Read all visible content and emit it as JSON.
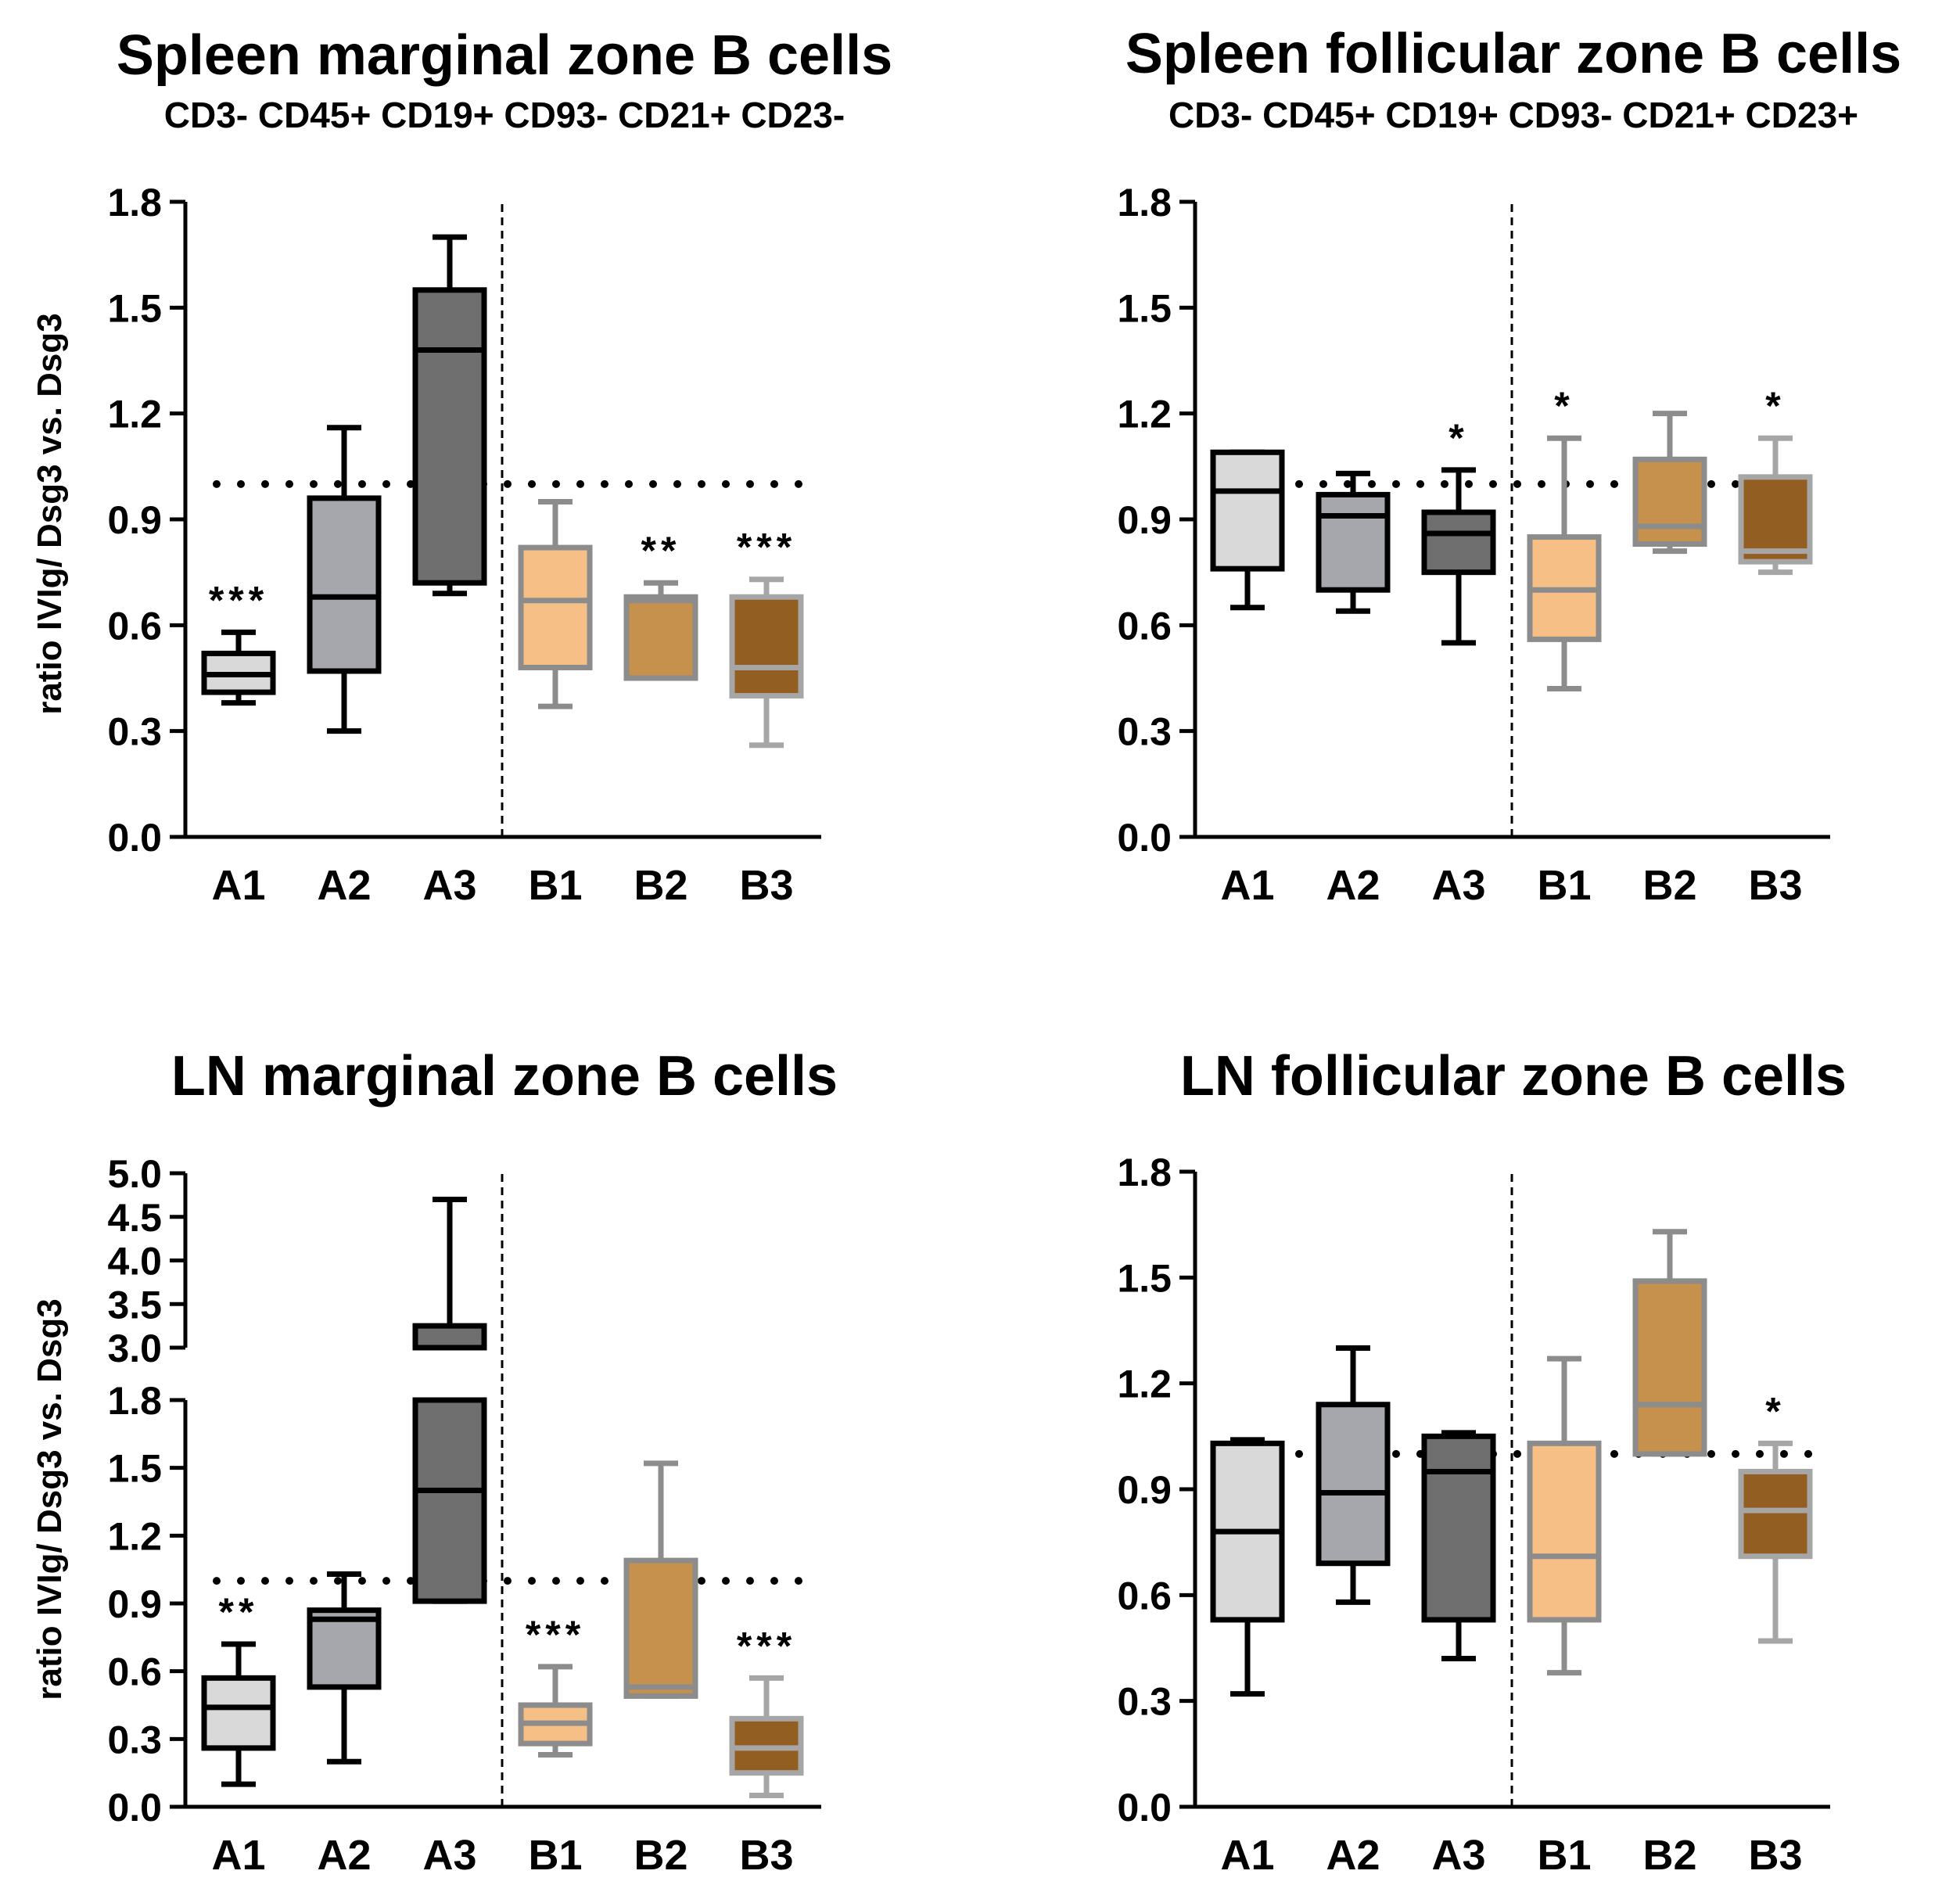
{
  "chart_data": [
    {
      "type": "box",
      "title": "Spleen marginal zone B cells",
      "subtitle": "CD3- CD45+ CD19+ CD93- CD21+ CD23-",
      "xlabel": "",
      "ylabel": "ratio IVIg/ Dsg3 vs. Dsg3",
      "ylim": [
        0,
        1.8
      ],
      "yticks": [
        "0.0",
        "0.3",
        "0.6",
        "0.9",
        "1.2",
        "1.5",
        "1.8"
      ],
      "reference_line": 1.0,
      "categories": [
        "A1",
        "A2",
        "A3",
        "B1",
        "B2",
        "B3"
      ],
      "boxes": [
        {
          "min": 0.38,
          "q1": 0.41,
          "median": 0.46,
          "q3": 0.52,
          "max": 0.58,
          "sig": "***"
        },
        {
          "min": 0.3,
          "q1": 0.47,
          "median": 0.68,
          "q3": 0.96,
          "max": 1.16,
          "sig": ""
        },
        {
          "min": 0.69,
          "q1": 0.72,
          "median": 1.38,
          "q3": 1.55,
          "max": 1.7,
          "sig": ""
        },
        {
          "min": 0.37,
          "q1": 0.48,
          "median": 0.67,
          "q3": 0.82,
          "max": 0.95,
          "sig": ""
        },
        {
          "min": 0.45,
          "q1": 0.45,
          "median": 0.67,
          "q3": 0.68,
          "max": 0.72,
          "sig": "**"
        },
        {
          "min": 0.26,
          "q1": 0.4,
          "median": 0.48,
          "q3": 0.68,
          "max": 0.73,
          "sig": "***"
        }
      ]
    },
    {
      "type": "box",
      "title": "Spleen follicular zone B cells",
      "subtitle": "CD3- CD45+ CD19+ CD93- CD21+ CD23+",
      "xlabel": "",
      "ylabel": "",
      "ylim": [
        0,
        1.8
      ],
      "yticks": [
        "0.0",
        "0.3",
        "0.6",
        "0.9",
        "1.2",
        "1.5",
        "1.8"
      ],
      "reference_line": 1.0,
      "categories": [
        "A1",
        "A2",
        "A3",
        "B1",
        "B2",
        "B3"
      ],
      "boxes": [
        {
          "min": 0.65,
          "q1": 0.76,
          "median": 0.98,
          "q3": 1.09,
          "max": 1.09,
          "sig": ""
        },
        {
          "min": 0.64,
          "q1": 0.7,
          "median": 0.91,
          "q3": 0.97,
          "max": 1.03,
          "sig": ""
        },
        {
          "min": 0.55,
          "q1": 0.75,
          "median": 0.86,
          "q3": 0.92,
          "max": 1.04,
          "sig": "*"
        },
        {
          "min": 0.42,
          "q1": 0.56,
          "median": 0.7,
          "q3": 0.85,
          "max": 1.13,
          "sig": "*"
        },
        {
          "min": 0.81,
          "q1": 0.83,
          "median": 0.88,
          "q3": 1.07,
          "max": 1.2,
          "sig": ""
        },
        {
          "min": 0.75,
          "q1": 0.78,
          "median": 0.81,
          "q3": 1.02,
          "max": 1.13,
          "sig": "*"
        }
      ]
    },
    {
      "type": "box",
      "title": "LN marginal zone B cells",
      "subtitle": "",
      "xlabel": "",
      "ylabel": "ratio IVIg/ Dsg3 vs. Dsg3",
      "ylim": [
        0,
        5.0
      ],
      "axis_break": [
        1.8,
        3.0
      ],
      "yticks": [
        "0.0",
        "0.3",
        "0.6",
        "0.9",
        "1.2",
        "1.5",
        "1.8",
        "3.0",
        "3.5",
        "4.0",
        "4.5",
        "5.0"
      ],
      "reference_line": 1.0,
      "categories": [
        "A1",
        "A2",
        "A3",
        "B1",
        "B2",
        "B3"
      ],
      "boxes": [
        {
          "min": 0.1,
          "q1": 0.26,
          "median": 0.44,
          "q3": 0.57,
          "max": 0.72,
          "sig": "**"
        },
        {
          "min": 0.2,
          "q1": 0.53,
          "median": 0.83,
          "q3": 0.87,
          "max": 1.03,
          "sig": ""
        },
        {
          "min": 0.91,
          "q1": 0.91,
          "median": 1.4,
          "q3": 3.25,
          "max": 4.7,
          "sig": ""
        },
        {
          "min": 0.23,
          "q1": 0.28,
          "median": 0.37,
          "q3": 0.45,
          "max": 0.62,
          "sig": "***"
        },
        {
          "min": 0.49,
          "q1": 0.49,
          "median": 0.53,
          "q3": 1.09,
          "max": 1.52,
          "sig": ""
        },
        {
          "min": 0.05,
          "q1": 0.15,
          "median": 0.26,
          "q3": 0.39,
          "max": 0.57,
          "sig": "***"
        }
      ]
    },
    {
      "type": "box",
      "title": "LN follicular zone B cells",
      "subtitle": "",
      "xlabel": "",
      "ylabel": "",
      "ylim": [
        0,
        1.8
      ],
      "yticks": [
        "0.0",
        "0.3",
        "0.6",
        "0.9",
        "1.2",
        "1.5",
        "1.8"
      ],
      "reference_line": 1.0,
      "categories": [
        "A1",
        "A2",
        "A3",
        "B1",
        "B2",
        "B3"
      ],
      "boxes": [
        {
          "min": 0.32,
          "q1": 0.53,
          "median": 0.78,
          "q3": 1.03,
          "max": 1.04,
          "sig": ""
        },
        {
          "min": 0.58,
          "q1": 0.69,
          "median": 0.89,
          "q3": 1.14,
          "max": 1.3,
          "sig": ""
        },
        {
          "min": 0.42,
          "q1": 0.53,
          "median": 0.95,
          "q3": 1.05,
          "max": 1.06,
          "sig": ""
        },
        {
          "min": 0.38,
          "q1": 0.53,
          "median": 0.71,
          "q3": 1.03,
          "max": 1.27,
          "sig": ""
        },
        {
          "min": 1.0,
          "q1": 1.0,
          "median": 1.14,
          "q3": 1.49,
          "max": 1.63,
          "sig": ""
        },
        {
          "min": 0.47,
          "q1": 0.71,
          "median": 0.84,
          "q3": 0.95,
          "max": 1.03,
          "sig": "*"
        }
      ]
    }
  ],
  "category_colors": [
    {
      "fill": "#d9d9d9",
      "stroke": "#000000"
    },
    {
      "fill": "#a6a6ad",
      "stroke": "#000000"
    },
    {
      "fill": "#6f6f6f",
      "stroke": "#000000"
    },
    {
      "fill": "#f5bf86",
      "stroke": "#8c8c8c"
    },
    {
      "fill": "#c6904d",
      "stroke": "#8c8c8c"
    },
    {
      "fill": "#935e21",
      "stroke": "#a6a6a6"
    }
  ]
}
